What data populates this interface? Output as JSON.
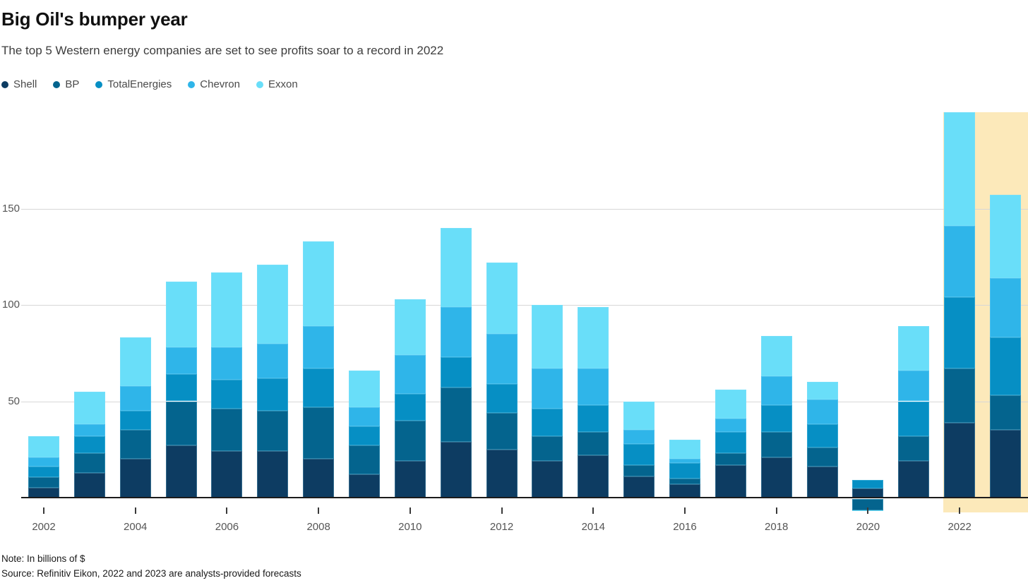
{
  "header": {
    "title": "Big Oil's bumper year",
    "subtitle": "The top 5 Western energy companies are set to see profits soar to a record in 2022"
  },
  "footer": {
    "note": "Note: In billions of $",
    "source": "Source: Refinitiv Eikon, 2022 and 2023 are analysts-provided forecasts"
  },
  "chart_data": {
    "type": "bar",
    "stacked": true,
    "title": "Big Oil's bumper year",
    "subtitle": "The top 5 Western energy companies are set to see profits soar to a record in 2022",
    "unit": "billions of $",
    "categories": [
      2002,
      2003,
      2004,
      2005,
      2006,
      2007,
      2008,
      2009,
      2010,
      2011,
      2012,
      2013,
      2014,
      2015,
      2016,
      2017,
      2018,
      2019,
      2020,
      2021,
      2022,
      2023
    ],
    "series": [
      {
        "name": "Shell",
        "color": "#0d3c62",
        "values": [
          5,
          13,
          20,
          27,
          24,
          24,
          20,
          12,
          19,
          29,
          25,
          19,
          22,
          11,
          7,
          17,
          21,
          16,
          4.9,
          19,
          39,
          35
        ]
      },
      {
        "name": "BP",
        "color": "#04648e",
        "values": [
          5.5,
          10,
          15,
          23,
          22,
          21,
          27,
          15,
          21,
          28,
          19,
          13,
          12,
          6,
          3,
          6,
          13,
          10,
          -5.7,
          13,
          28,
          18
        ]
      },
      {
        "name": "TotalEnergies",
        "color": "#068fc4",
        "values": [
          5.5,
          9,
          10,
          14,
          15,
          17,
          20,
          10,
          14,
          16,
          15,
          14,
          14,
          11,
          8,
          11,
          14,
          12,
          4.1,
          18,
          37,
          30
        ]
      },
      {
        "name": "Chevron",
        "color": "#2fb5e9",
        "values": [
          5,
          6,
          13,
          14,
          17,
          18,
          22,
          10,
          20,
          26,
          26,
          21,
          19,
          7,
          2,
          7,
          15,
          13,
          0,
          16,
          37,
          31
        ]
      },
      {
        "name": "Exxon",
        "color": "#69def9",
        "values": [
          11,
          17,
          25,
          34,
          39,
          41,
          44,
          19,
          29,
          41,
          37,
          33,
          32,
          15,
          10,
          15,
          21,
          9,
          -0.3,
          23,
          59,
          43
        ]
      }
    ],
    "totals": [
      32,
      55,
      83,
      112,
      117,
      121,
      133,
      66,
      103,
      140,
      122,
      100,
      99,
      50,
      30,
      56,
      84,
      60,
      3,
      89,
      200,
      157
    ],
    "yticks": [
      50,
      100,
      150
    ],
    "xticks": [
      2002,
      2004,
      2006,
      2008,
      2010,
      2012,
      2014,
      2016,
      2018,
      2020,
      2022
    ],
    "ylim": [
      -15,
      205
    ],
    "grid": "horizontal",
    "legend_position": "top-left",
    "forecast_highlight": {
      "years": [
        2022,
        2023
      ],
      "color": "#fce9ba"
    },
    "colors": {
      "gridline": "#d7d7d7",
      "axis": "#1c1c1c",
      "text": "#4a4a4a"
    }
  }
}
